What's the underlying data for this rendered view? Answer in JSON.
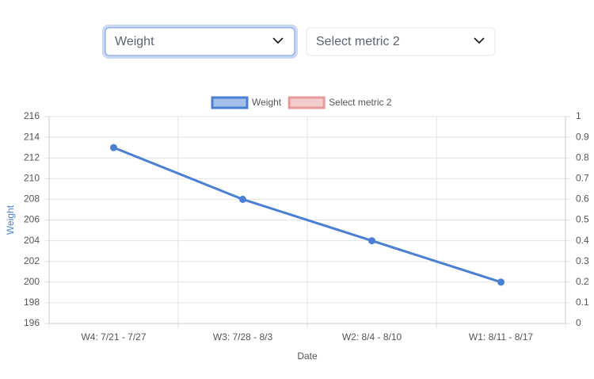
{
  "controls": {
    "select1": "Weight",
    "select2": "Select metric 2"
  },
  "chart_data": {
    "type": "line",
    "categories": [
      "W4: 7/21 - 7/27",
      "W3: 7/28 - 8/3",
      "W2: 8/4 - 8/10",
      "W1: 8/11 - 8/17"
    ],
    "series": [
      {
        "name": "Weight",
        "color": "#4a7fd6",
        "values": [
          213,
          208,
          204,
          200
        ]
      },
      {
        "name": "Select metric 2",
        "color": "#e89a9a",
        "axis": "y2",
        "values": [
          null,
          null,
          null,
          null
        ]
      }
    ],
    "xlabel": "Date",
    "ylabel": "Weight",
    "ylim": [
      196,
      216
    ],
    "yticks": [
      196,
      198,
      200,
      202,
      204,
      206,
      208,
      210,
      212,
      214,
      216
    ],
    "y2lim": [
      0,
      1
    ],
    "y2ticks": [
      0,
      0.1,
      0.2,
      0.3,
      0.4,
      0.5,
      0.6,
      0.7,
      0.8,
      0.9,
      1
    ],
    "grid": true,
    "legend": "top"
  }
}
